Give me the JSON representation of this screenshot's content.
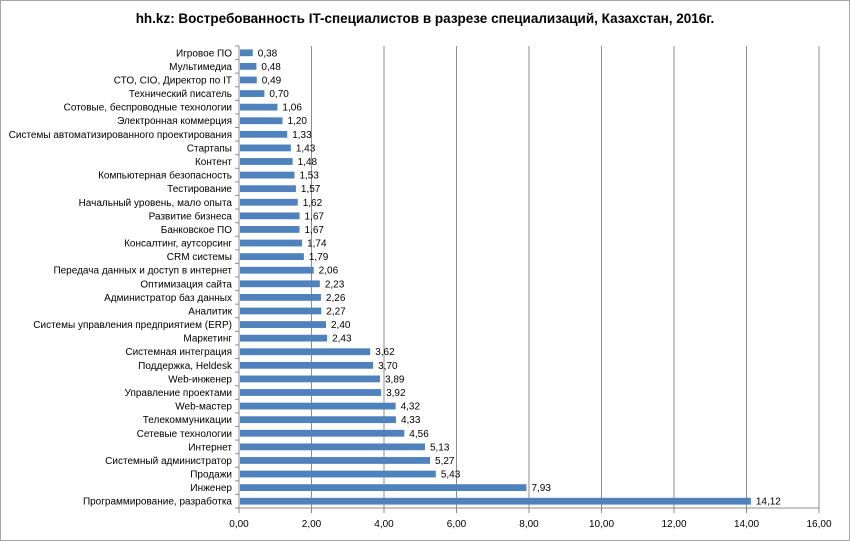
{
  "chart_data": {
    "type": "bar",
    "orientation": "horizontal",
    "title": "hh.kz: Востребованность IT-специалистов в разрезе специализаций, Казахстан, 2016г.",
    "xlabel": "",
    "ylabel": "",
    "xlim": [
      0,
      16
    ],
    "xticks": [
      "0,00",
      "2,00",
      "4,00",
      "6,00",
      "8,00",
      "10,00",
      "12,00",
      "14,00",
      "16,00"
    ],
    "grid": true,
    "legend": "none",
    "bar_color": "#4f81bd",
    "categories": [
      "Игровое ПО",
      "Мультимедиа",
      "СТО, CIO, Директор по IT",
      "Технический писатель",
      "Сотовые, беспроводные технологии",
      "Электронная коммерция",
      "Системы автоматизированного проектирования",
      "Стартапы",
      "Контент",
      "Компьютерная безопасность",
      "Тестирование",
      "Начальный уровень, мало опыта",
      "Развитие бизнеса",
      "Банковское ПО",
      "Консалтинг, аутсорсинг",
      "CRM системы",
      "Передача данных и доступ в интернет",
      "Оптимизация сайта",
      "Администратор баз данных",
      "Аналитик",
      "Системы управления предприятием (ERP)",
      "Маркетинг",
      "Системная интеграция",
      "Поддержка, Heldesk",
      "Web-инженер",
      "Управление проектами",
      "Web-мастер",
      "Телекоммуникации",
      "Сетевые технологии",
      "Интернет",
      "Системный администратор",
      "Продажи",
      "Инженер",
      "Программирование, разработка"
    ],
    "values": [
      0.38,
      0.48,
      0.49,
      0.7,
      1.06,
      1.2,
      1.33,
      1.43,
      1.48,
      1.53,
      1.57,
      1.62,
      1.67,
      1.67,
      1.74,
      1.79,
      2.06,
      2.23,
      2.26,
      2.27,
      2.4,
      2.43,
      3.62,
      3.7,
      3.89,
      3.92,
      4.32,
      4.33,
      4.56,
      5.13,
      5.27,
      5.43,
      7.93,
      14.12
    ],
    "value_labels": [
      "0,38",
      "0,48",
      "0,49",
      "0,70",
      "1,06",
      "1,20",
      "1,33",
      "1,43",
      "1,48",
      "1,53",
      "1,57",
      "1,62",
      "1,67",
      "1,67",
      "1,74",
      "1,79",
      "2,06",
      "2,23",
      "2,26",
      "2,27",
      "2,40",
      "2,43",
      "3,62",
      "3,70",
      "3,89",
      "3,92",
      "4,32",
      "4,33",
      "4,56",
      "5,13",
      "5,27",
      "5,43",
      "7,93",
      "14,12"
    ]
  }
}
